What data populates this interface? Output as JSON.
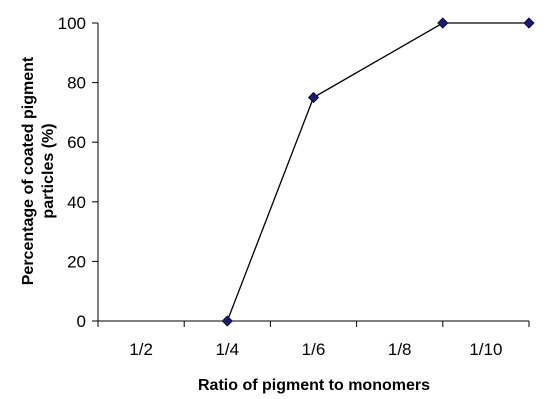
{
  "chart_data": {
    "type": "line",
    "categories": [
      "1/2",
      "1/4",
      "1/6",
      "1/8",
      "1/10"
    ],
    "x": [
      1.5,
      2.5,
      4,
      5
    ],
    "y": [
      0,
      75,
      100,
      100
    ],
    "xlabel": "Ratio of pigment to monomers",
    "ylabel_lines": [
      "Percentage of coated pigment",
      "particles  (%)"
    ],
    "ylim": [
      0,
      100
    ],
    "yticks": [
      0,
      20,
      40,
      60,
      80,
      100
    ],
    "grid": false,
    "legend": "none",
    "colors": {
      "line": "#000000",
      "marker": "#1a1a7a",
      "marker_stroke": "#000033"
    }
  }
}
